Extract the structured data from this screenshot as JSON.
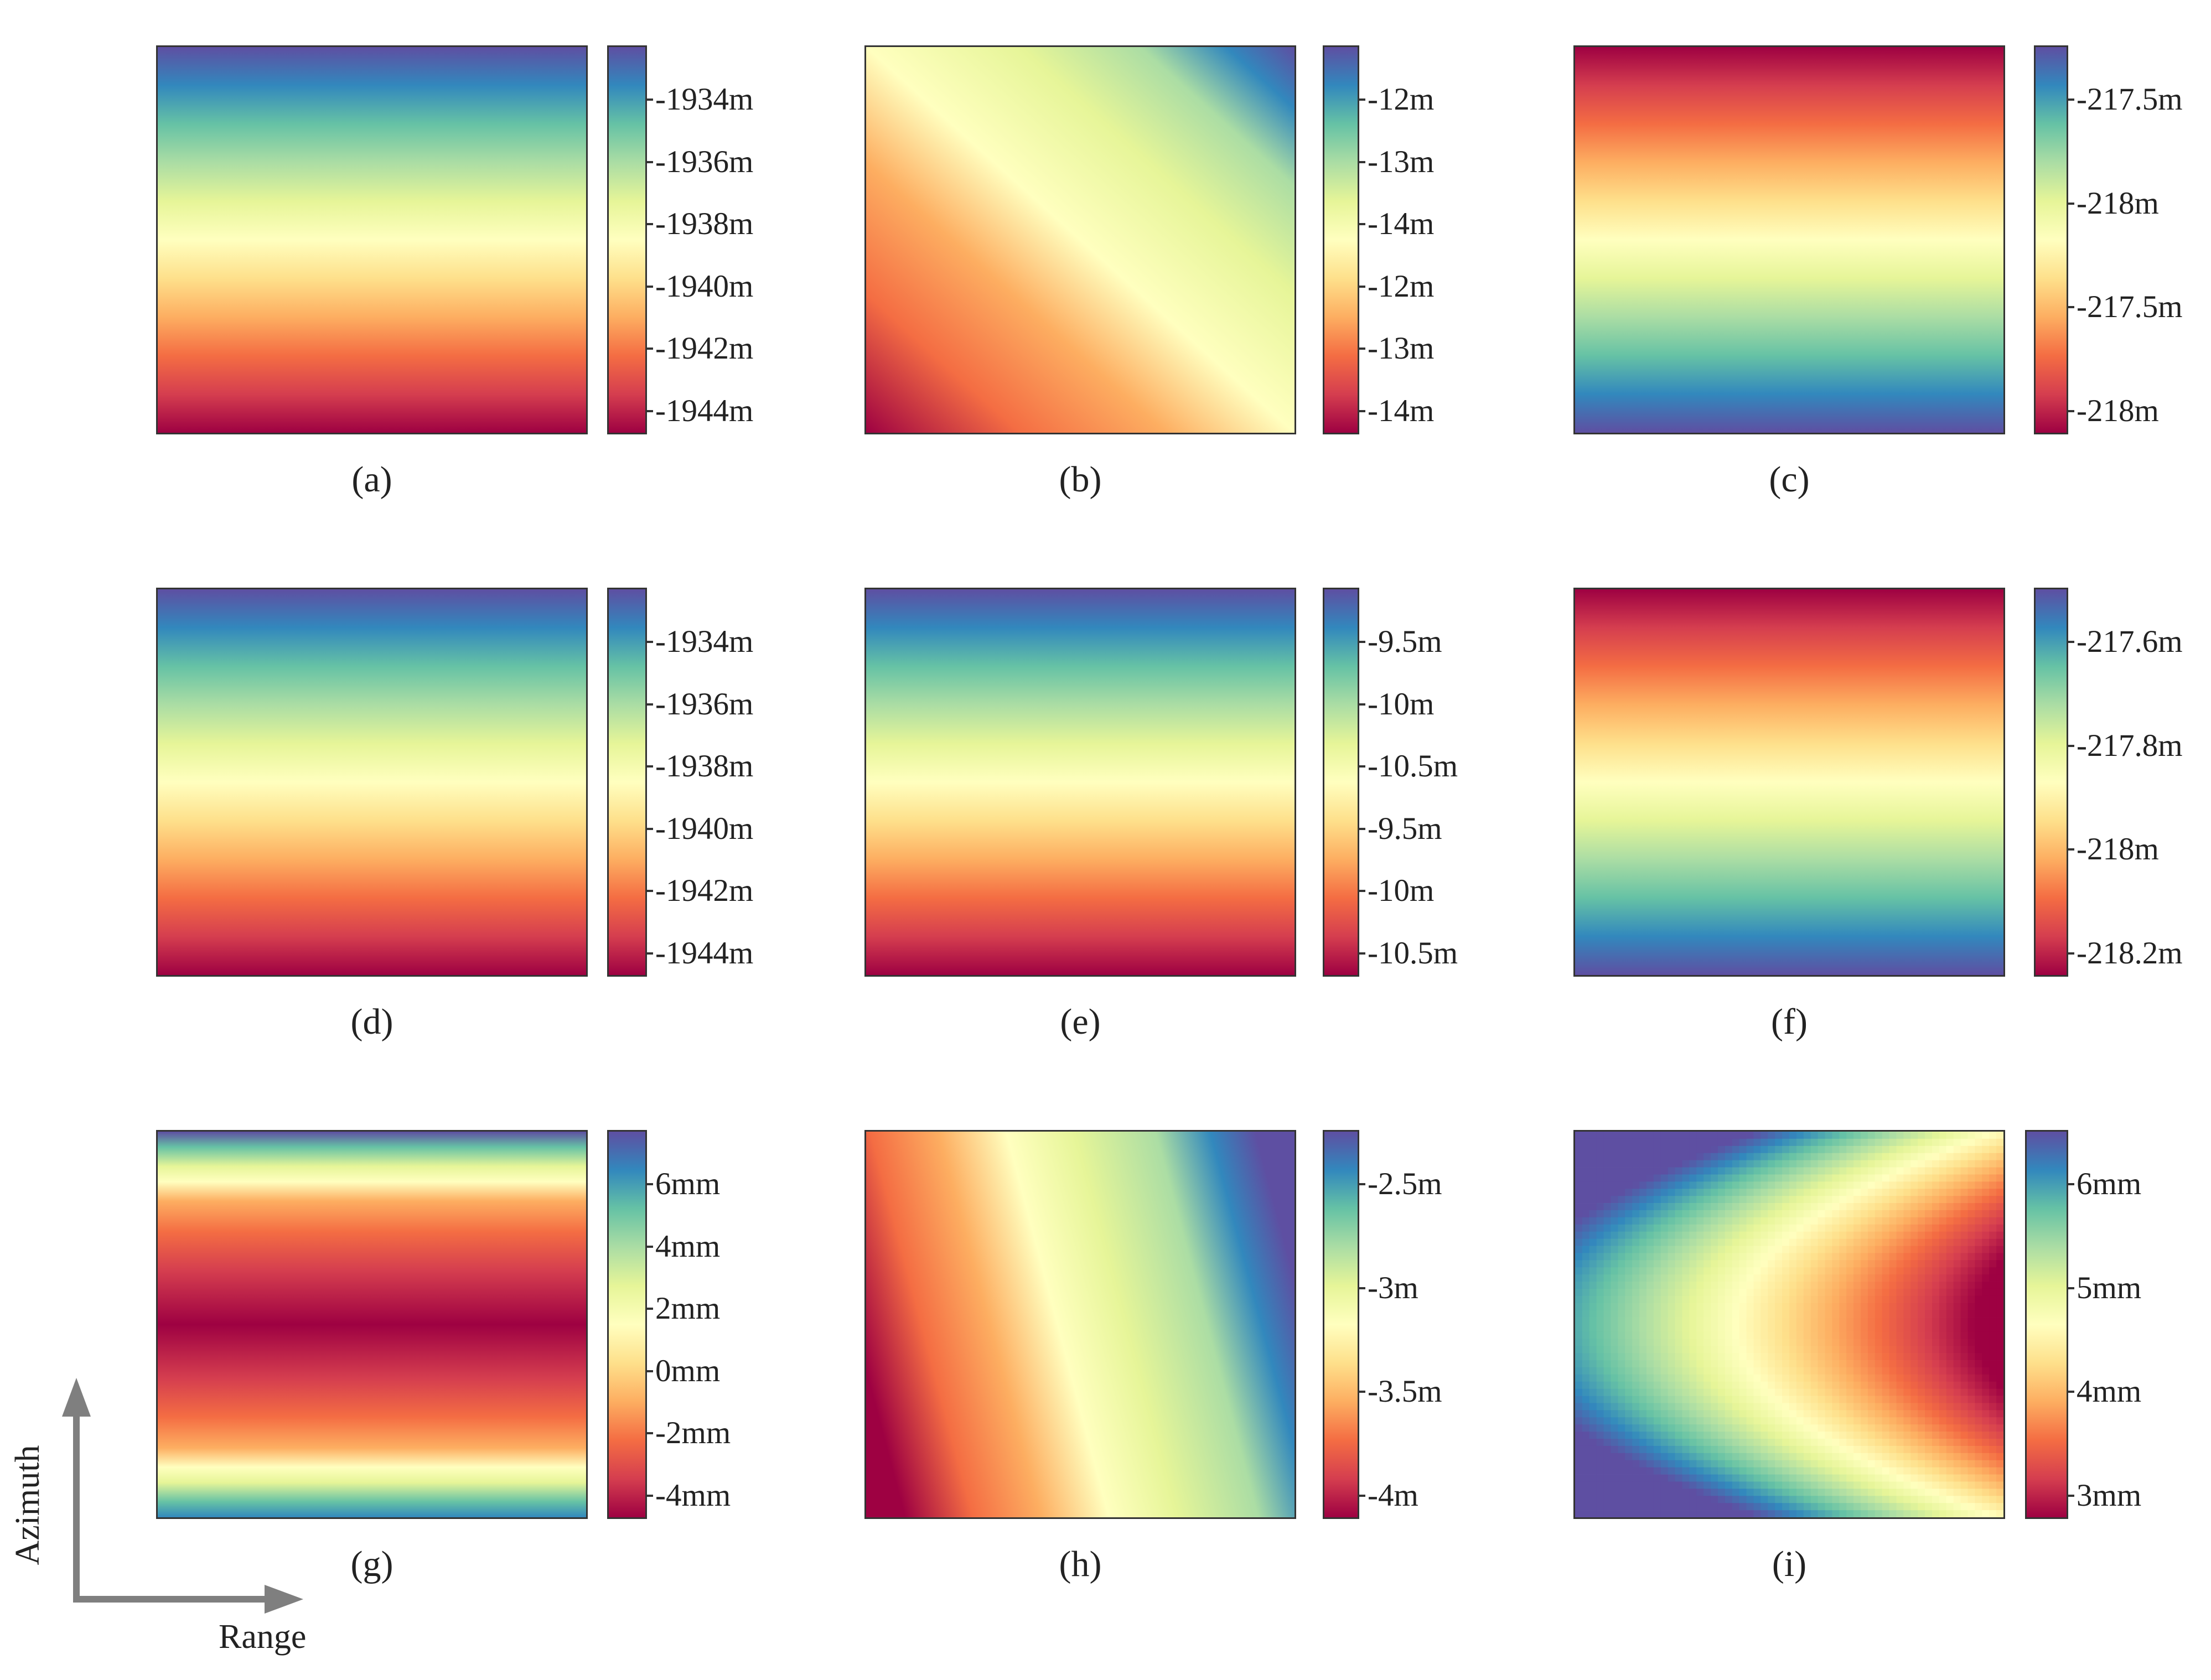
{
  "colormap": [
    "#9e0142",
    "#d53e4f",
    "#f46d43",
    "#fdae61",
    "#fee08b",
    "#ffffbf",
    "#e6f598",
    "#abdda4",
    "#66c2a5",
    "#3288bd",
    "#5e4fa2"
  ],
  "panels": [
    {
      "id": "a",
      "caption": "(a)",
      "pattern": "horizontal-bands",
      "ticks": [
        "-1934m",
        "-1936m",
        "-1938m",
        "-1940m",
        "-1942m",
        "-1944m"
      ]
    },
    {
      "id": "b",
      "caption": "(b)",
      "pattern": "diagonal-gradient",
      "ticks": [
        "-12m",
        "-13m",
        "-14m",
        "-12m",
        "-13m",
        "-14m"
      ]
    },
    {
      "id": "c",
      "caption": "(c)",
      "pattern": "horizontal-bands-inverted",
      "ticks": [
        "-217.5m",
        "-218m",
        "-217.5m",
        "-218m"
      ]
    },
    {
      "id": "d",
      "caption": "(d)",
      "pattern": "horizontal-bands",
      "ticks": [
        "-1934m",
        "-1936m",
        "-1938m",
        "-1940m",
        "-1942m",
        "-1944m"
      ]
    },
    {
      "id": "e",
      "caption": "(e)",
      "pattern": "horizontal-bands",
      "ticks": [
        "-9.5m",
        "-10m",
        "-10.5m",
        "-9.5m",
        "-10m",
        "-10.5m"
      ]
    },
    {
      "id": "f",
      "caption": "(f)",
      "pattern": "horizontal-bands-inverted",
      "ticks": [
        "-217.6m",
        "-217.8m",
        "-218m",
        "-218.2m"
      ]
    },
    {
      "id": "g",
      "caption": "(g)",
      "pattern": "symmetric-bands",
      "ticks": [
        "6mm",
        "4mm",
        "2mm",
        "0mm",
        "-2mm",
        "-4mm"
      ]
    },
    {
      "id": "h",
      "caption": "(h)",
      "pattern": "tilted-vertical-gradient",
      "ticks": [
        "-2.5m",
        "-3m",
        "-3.5m",
        "-4m"
      ]
    },
    {
      "id": "i",
      "caption": "(i)",
      "pattern": "parabolic",
      "ticks": [
        "6mm",
        "5mm",
        "4mm",
        "3mm"
      ]
    }
  ],
  "axis_indicator": {
    "vertical_label": "Azimuth",
    "horizontal_label": "Range",
    "arrow_color": "#7f7f7f"
  }
}
